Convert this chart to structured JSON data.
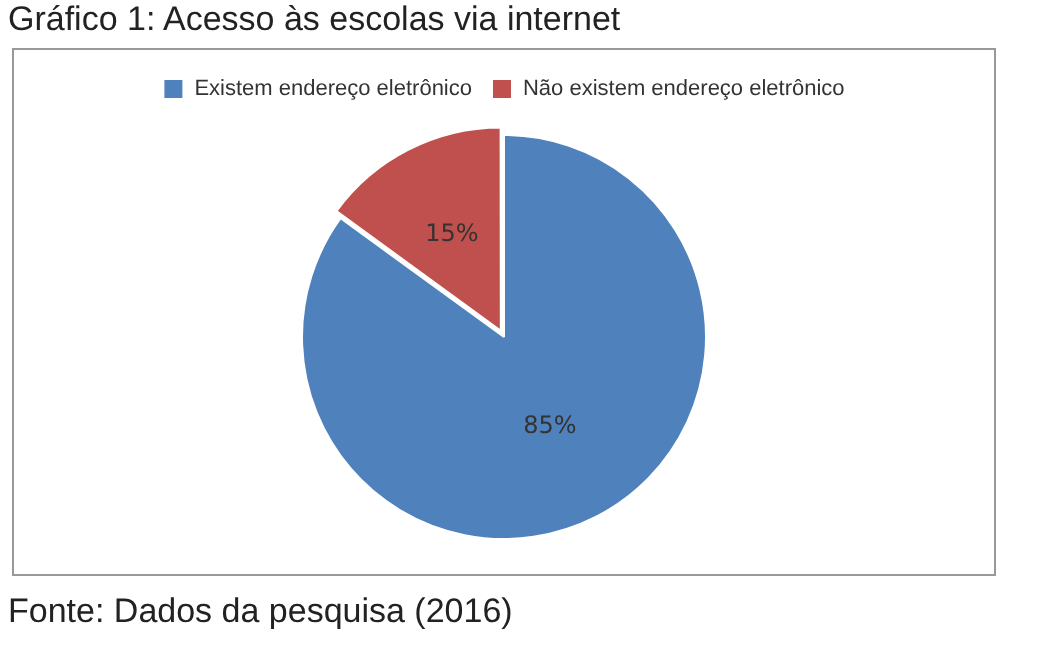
{
  "chart_data": {
    "type": "pie",
    "title": "Gráfico 1: Acesso às escolas via internet",
    "categories": [
      "Existem endereço eletrônico",
      "Não existem endereço eletrônico"
    ],
    "values": [
      85,
      15
    ],
    "colors": [
      "#4f81bd",
      "#c0504d"
    ],
    "value_labels": [
      "85%",
      "15%"
    ],
    "legend": "top",
    "annotations": [
      "Fonte: Dados da pesquisa (2016)"
    ]
  }
}
